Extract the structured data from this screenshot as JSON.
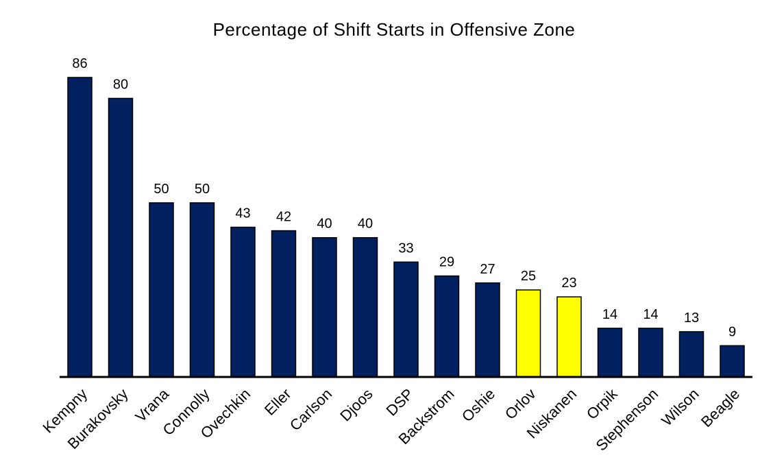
{
  "chart_data": {
    "type": "bar",
    "title": "Percentage of Shift Starts in Offensive Zone",
    "xlabel": "",
    "ylabel": "",
    "ylim": [
      0,
      88
    ],
    "grid": false,
    "legend": "none",
    "categories": [
      "Kempny",
      "Burakovsky",
      "Vrana",
      "Connolly",
      "Ovechkin",
      "Eller",
      "Carlson",
      "Djoos",
      "DSP",
      "Backstrom",
      "Oshie",
      "Orlov",
      "Niskanen",
      "Orpik",
      "Stephenson",
      "Wilson",
      "Beagle"
    ],
    "values": [
      86,
      80,
      50,
      50,
      43,
      42,
      40,
      40,
      33,
      29,
      27,
      25,
      23,
      14,
      14,
      13,
      9
    ],
    "data_labels": [
      "86",
      "80",
      "50",
      "50",
      "43",
      "42",
      "40",
      "40",
      "33",
      "29",
      "27",
      "25",
      "23",
      "14",
      "14",
      "13",
      "9"
    ],
    "highlighted": [
      "Orlov",
      "Niskanen"
    ],
    "colors": {
      "bar": "#002060",
      "highlight": "#FFFF00",
      "bar_outline": "#000000",
      "axis": "#000000"
    }
  }
}
